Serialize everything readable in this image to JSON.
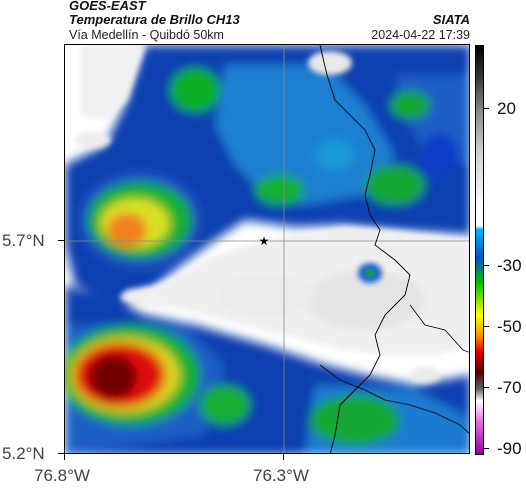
{
  "header": {
    "satellite": "GOES-EAST",
    "product": "Temperatura de Brillo CH13",
    "subtitle": "Vía Medellín - Quibdó 50km",
    "org": "SIATA",
    "datetime": "2024-04-22 17:39"
  },
  "axes": {
    "lat_labels": [
      "5.7°N",
      "5.2°N"
    ],
    "lon_labels": [
      "76.8°W",
      "76.3°W"
    ]
  },
  "colorbar": {
    "labels": [
      "20",
      "-30",
      "-50",
      "-70",
      "-90"
    ],
    "unit_scale": "brightness temperature (°C)",
    "colors": {
      "warm_top": "#000000",
      "white": "#ffffff",
      "cyan": "#00b4ff",
      "blue": "#001a8c",
      "green": "#00c000",
      "yellow": "#ffff00",
      "orange": "#ff8000",
      "red": "#d00000",
      "darkred": "#500000",
      "magenta": "#c000c0"
    }
  },
  "map": {
    "marker": "star-icon",
    "layers": [
      "cloud-field",
      "country-border",
      "department-border",
      "graticule"
    ]
  }
}
